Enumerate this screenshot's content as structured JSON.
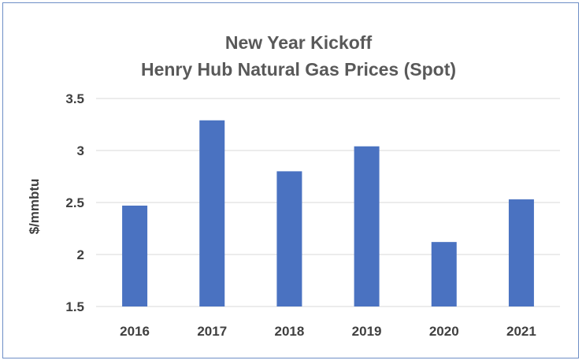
{
  "chart_data": {
    "type": "bar",
    "title_lines": [
      "New Year Kickoff",
      "Henry Hub Natural Gas Prices (Spot)"
    ],
    "xlabel": "",
    "ylabel": "$/mmbtu",
    "categories": [
      "2016",
      "2017",
      "2018",
      "2019",
      "2020",
      "2021"
    ],
    "values": [
      2.47,
      3.29,
      2.8,
      3.04,
      2.12,
      2.53
    ],
    "ylim": [
      1.5,
      3.5
    ],
    "yticks": [
      "1.5",
      "2",
      "2.5",
      "3",
      "3.5"
    ],
    "grid": true,
    "bar_color": "#4a72c1",
    "gridline_color": "#d9d9d9",
    "border_color": "#6e8fc6"
  }
}
